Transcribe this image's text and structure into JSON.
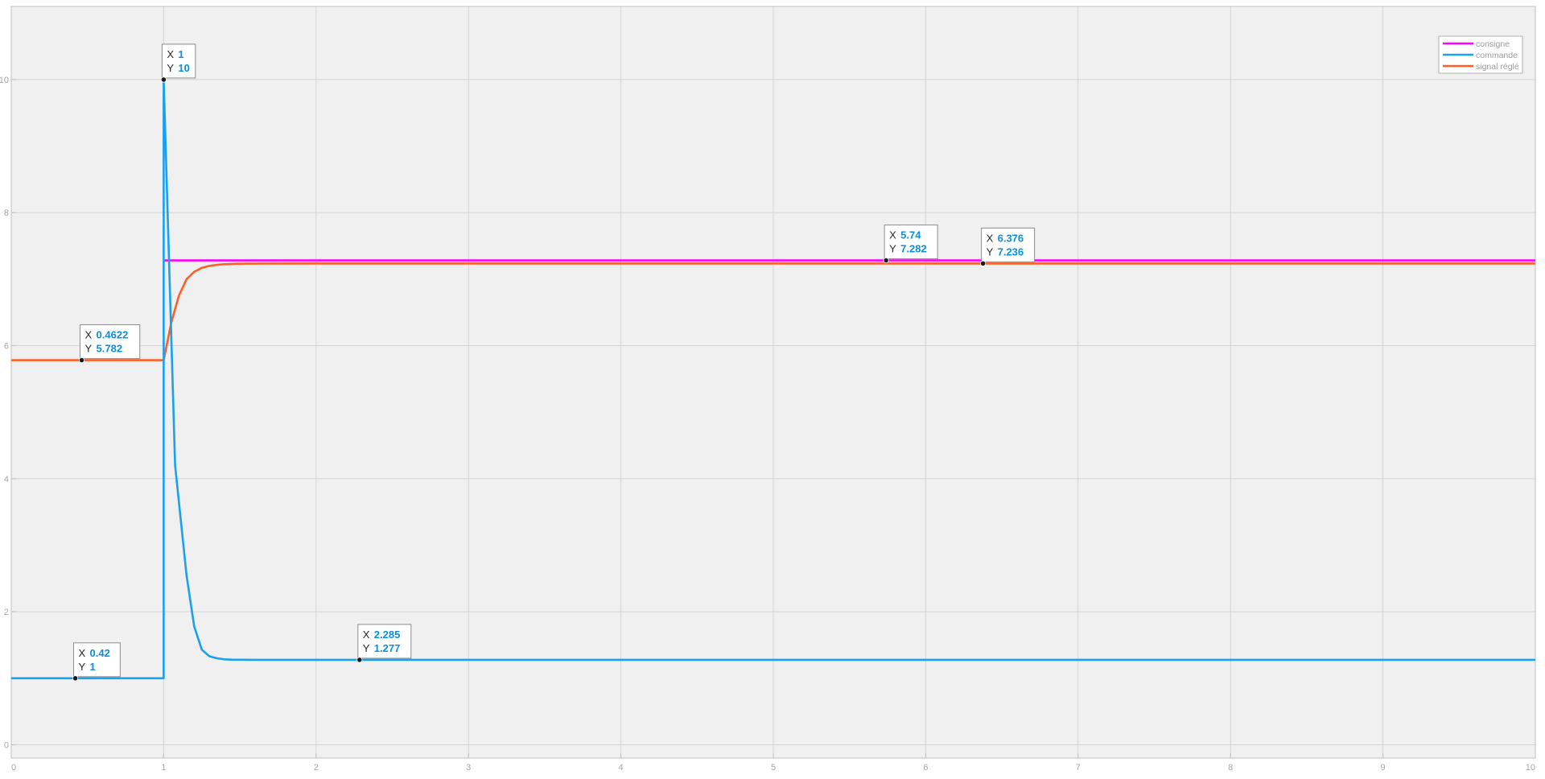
{
  "chart_data": {
    "type": "line",
    "title": "",
    "xlabel": "",
    "ylabel": "",
    "xlim": [
      0,
      10
    ],
    "ylim": [
      -0.2,
      11.1
    ],
    "grid": true,
    "legend_location": "top-right",
    "x_ticks": [
      0,
      1,
      2,
      3,
      4,
      5,
      6,
      7,
      8,
      9,
      10
    ],
    "y_ticks": [
      0,
      2,
      4,
      6,
      8,
      10
    ],
    "colors": {
      "plot_background": "#f0f0f0",
      "grid": "#d4d4d4",
      "axes": "#bfbfbf",
      "consigne": "#ff00ff",
      "commande": "#1aa0f0",
      "signal": "#ff5f26"
    },
    "series": [
      {
        "name": "consigne",
        "color": "#ff00ff",
        "x": [
          1.0,
          10.0
        ],
        "y": [
          7.282,
          7.282
        ]
      },
      {
        "name": "commande",
        "color": "#1aa0f0",
        "x": [
          0,
          1.0,
          1.0,
          1.075,
          1.15,
          1.2,
          1.25,
          1.3,
          1.35,
          1.4,
          1.45,
          1.5,
          1.6,
          1.8,
          2.285,
          10.0
        ],
        "y": [
          1,
          1,
          10,
          4.2,
          2.55,
          1.78,
          1.43,
          1.33,
          1.3,
          1.285,
          1.28,
          1.278,
          1.277,
          1.277,
          1.277,
          1.277
        ]
      },
      {
        "name": "signal réglé",
        "color": "#ff5f26",
        "x": [
          0,
          0.4622,
          1.0,
          1.05,
          1.1,
          1.15,
          1.2,
          1.25,
          1.3,
          1.35,
          1.4,
          1.5,
          1.7,
          2.0,
          6.376,
          10.0
        ],
        "y": [
          5.782,
          5.782,
          5.782,
          6.35,
          6.75,
          7.0,
          7.11,
          7.17,
          7.2,
          7.215,
          7.225,
          7.232,
          7.235,
          7.236,
          7.236,
          7.236
        ]
      }
    ],
    "datatips": [
      {
        "series": "commande",
        "x_label": "X",
        "x_value": "1",
        "y_label": "Y",
        "y_value": "10",
        "x": 1,
        "y": 10
      },
      {
        "series": "signal réglé",
        "x_label": "X",
        "x_value": "0.4622",
        "y_label": "Y",
        "y_value": "5.782",
        "x": 0.4622,
        "y": 5.782
      },
      {
        "series": "commande",
        "x_label": "X",
        "x_value": "0.42",
        "y_label": "Y",
        "y_value": "1",
        "x": 0.42,
        "y": 1
      },
      {
        "series": "commande",
        "x_label": "X",
        "x_value": "2.285",
        "y_label": "Y",
        "y_value": "1.277",
        "x": 2.285,
        "y": 1.277
      },
      {
        "series": "consigne",
        "x_label": "X",
        "x_value": "5.74",
        "y_label": "Y",
        "y_value": "7.282",
        "x": 5.74,
        "y": 7.282
      },
      {
        "series": "signal réglé",
        "x_label": "X",
        "x_value": "6.376",
        "y_label": "Y",
        "y_value": "7.236",
        "x": 6.376,
        "y": 7.236
      }
    ]
  }
}
